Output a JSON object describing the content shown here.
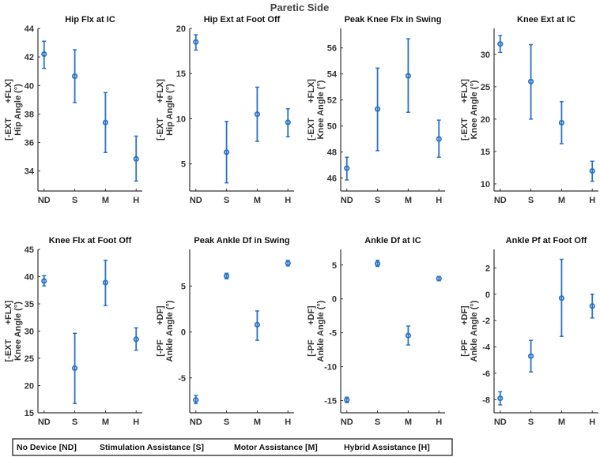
{
  "title": "Paretic Side",
  "legend": [
    "No Device [ND]",
    "Stimulation Assistance [S]",
    "Motor Assistance [M]",
    "Hybrid Assistance [H]"
  ],
  "colors": {
    "series": "#2a73c5",
    "axis": "#333333"
  },
  "chart_data": [
    {
      "type": "scatter",
      "title": "Hip Flx at IC",
      "ylabel_bracket": "[-EXT      +FLX]",
      "ylabel": "Hip Angle (°)",
      "categories": [
        "ND",
        "S",
        "M",
        "H"
      ],
      "values": [
        42.2,
        40.65,
        37.4,
        34.85
      ],
      "lower": [
        41.2,
        38.8,
        35.3,
        33.3
      ],
      "upper": [
        43.1,
        42.5,
        39.5,
        36.45
      ],
      "ylim": [
        32.6,
        44
      ],
      "yticks": [
        34,
        36,
        38,
        40,
        42,
        44
      ]
    },
    {
      "type": "scatter",
      "title": "Hip Ext at Foot Off",
      "ylabel_bracket": "[-EXT      +FLX]",
      "ylabel": "Hip Angle (°)",
      "categories": [
        "ND",
        "S",
        "M",
        "H"
      ],
      "values": [
        18.5,
        6.3,
        10.5,
        9.6
      ],
      "lower": [
        17.6,
        2.9,
        7.5,
        8.0
      ],
      "upper": [
        19.3,
        9.7,
        13.5,
        11.1
      ],
      "ylim": [
        2,
        20
      ],
      "yticks": [
        5,
        10,
        15,
        20
      ]
    },
    {
      "type": "scatter",
      "title": "Peak Knee Flx in Swing",
      "ylabel_bracket": "[-EXT      +FLX]",
      "ylabel": "Knee Angle (°)",
      "categories": [
        "ND",
        "S",
        "M",
        "H"
      ],
      "values": [
        46.75,
        51.3,
        53.85,
        49.0
      ],
      "lower": [
        45.85,
        48.1,
        51.05,
        47.6
      ],
      "upper": [
        47.6,
        54.45,
        56.7,
        50.45
      ],
      "ylim": [
        45,
        57.5
      ],
      "yticks": [
        46,
        48,
        50,
        52,
        54,
        56
      ]
    },
    {
      "type": "scatter",
      "title": "Knee Ext at IC",
      "ylabel_bracket": "[-EXT      +FLX]",
      "ylabel": "Knee Angle (°)",
      "categories": [
        "ND",
        "S",
        "M",
        "H"
      ],
      "values": [
        31.6,
        25.8,
        19.45,
        12.0
      ],
      "lower": [
        30.3,
        20.0,
        16.2,
        10.4
      ],
      "upper": [
        32.9,
        31.5,
        22.7,
        13.5
      ],
      "ylim": [
        8.9,
        34
      ],
      "yticks": [
        10,
        15,
        20,
        25,
        30
      ]
    },
    {
      "type": "scatter",
      "title": "Knee Flx at Foot Off",
      "ylabel_bracket": "[-EXT      +FLX]",
      "ylabel": "Knee Angle (°)",
      "categories": [
        "ND",
        "S",
        "M",
        "H"
      ],
      "values": [
        39.2,
        23.2,
        38.9,
        28.5
      ],
      "lower": [
        38.3,
        16.7,
        34.7,
        26.5
      ],
      "upper": [
        40.2,
        29.6,
        43.0,
        30.6
      ],
      "ylim": [
        15,
        45
      ],
      "yticks": [
        15,
        20,
        25,
        30,
        35,
        40,
        45
      ]
    },
    {
      "type": "scatter",
      "title": "Peak Ankle Df in Swing",
      "ylabel_bracket": "[-PF      +DF]",
      "ylabel": "Ankle Angle (°)",
      "categories": [
        "ND",
        "S",
        "M",
        "H"
      ],
      "values": [
        -7.4,
        6.1,
        0.8,
        7.5
      ],
      "lower": [
        -7.8,
        5.8,
        -0.9,
        7.2
      ],
      "upper": [
        -6.9,
        6.4,
        2.3,
        7.8
      ],
      "ylim": [
        -8.8,
        9
      ],
      "yticks": [
        -5,
        0,
        5
      ]
    },
    {
      "type": "scatter",
      "title": "Ankle Df at IC",
      "ylabel_bracket": "[-PF      +DF]",
      "ylabel": "Ankle Angle (°)",
      "categories": [
        "ND",
        "S",
        "M",
        "H"
      ],
      "values": [
        -14.9,
        5.2,
        -5.4,
        3.0
      ],
      "lower": [
        -15.3,
        4.8,
        -6.8,
        2.7
      ],
      "upper": [
        -14.5,
        5.7,
        -4.0,
        3.3
      ],
      "ylim": [
        -16.8,
        7.3
      ],
      "yticks": [
        -15,
        -10,
        -5,
        0,
        5
      ]
    },
    {
      "type": "scatter",
      "title": "Ankle Pf at Foot Off",
      "ylabel_bracket": "[-PF      +DF]",
      "ylabel": "Ankle Angle (°)",
      "categories": [
        "ND",
        "S",
        "M",
        "H"
      ],
      "values": [
        -7.9,
        -4.7,
        -0.3,
        -0.9
      ],
      "lower": [
        -8.4,
        -5.9,
        -3.2,
        -1.8
      ],
      "upper": [
        -7.4,
        -3.5,
        2.65,
        0.0
      ],
      "ylim": [
        -9,
        3.4
      ],
      "yticks": [
        -8,
        -6,
        -4,
        -2,
        0,
        2
      ]
    }
  ]
}
